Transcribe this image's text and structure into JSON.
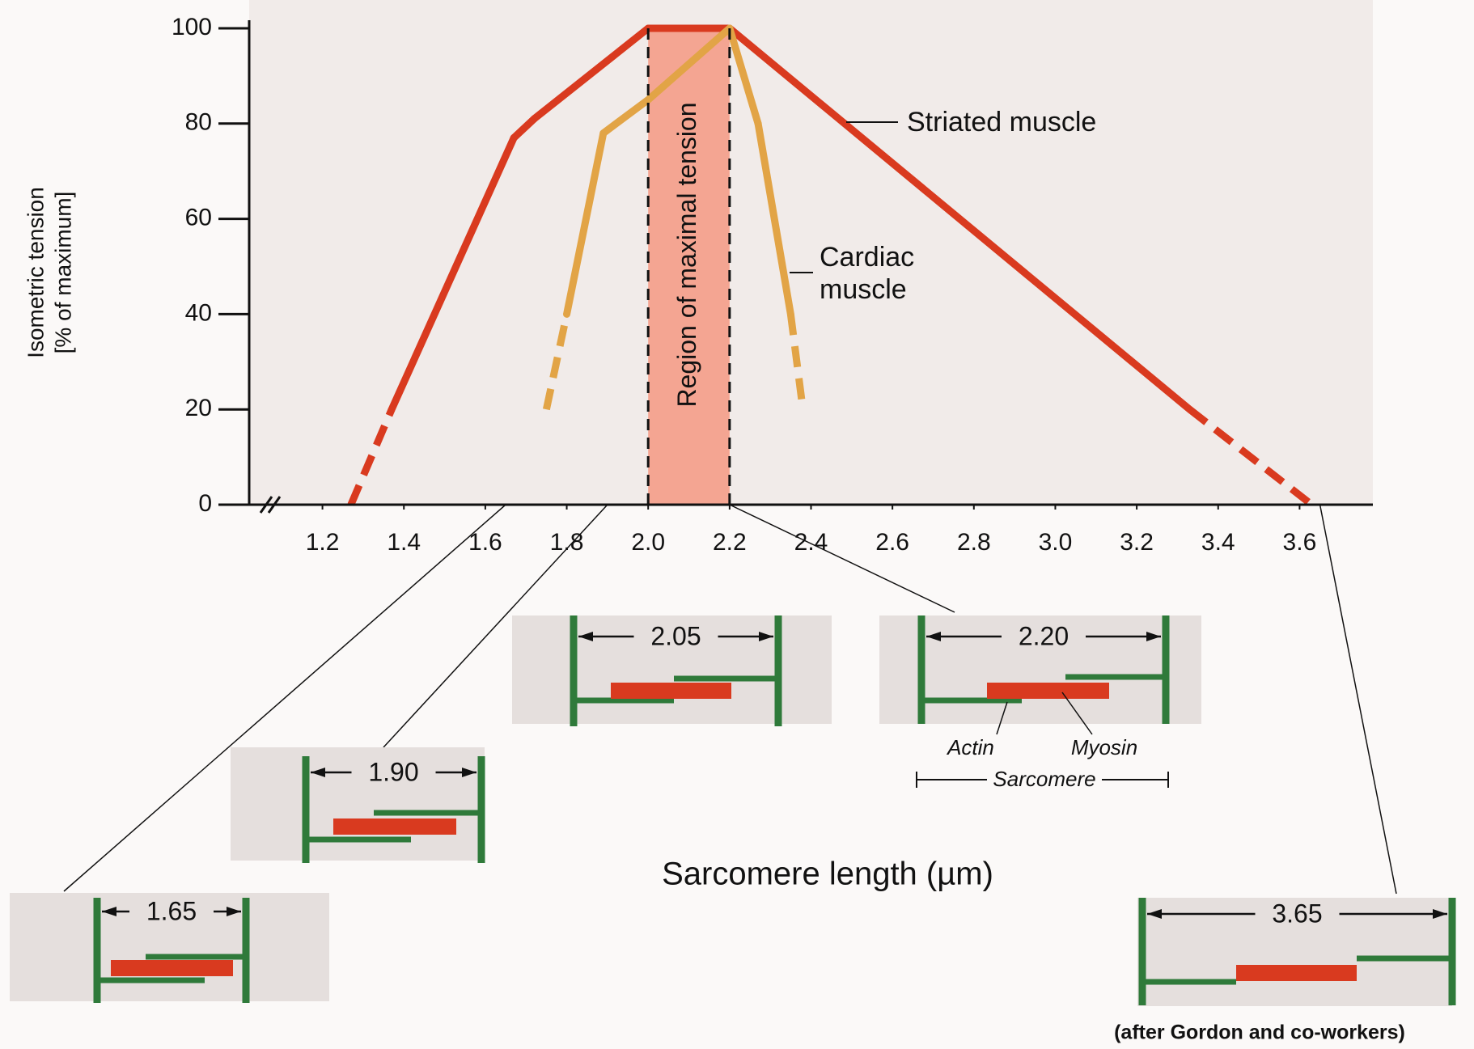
{
  "chart_data": {
    "type": "line",
    "ylabel": [
      "Isometric tension",
      "[% of maximum]"
    ],
    "xlabel": "Sarcomere length (µm)",
    "credit": "(after Gordon and co-workers)",
    "xlim": [
      1.02,
      3.78
    ],
    "ylim": [
      0,
      100
    ],
    "xticks": [
      {
        "value": 1.2,
        "label": "1.2"
      },
      {
        "value": 1.4,
        "label": "1.4"
      },
      {
        "value": 1.6,
        "label": "1.6"
      },
      {
        "value": 1.8,
        "label": "1.8"
      },
      {
        "value": 2.0,
        "label": "2.0"
      },
      {
        "value": 2.2,
        "label": "2.2"
      },
      {
        "value": 2.4,
        "label": "2.4"
      },
      {
        "value": 2.6,
        "label": "2.6"
      },
      {
        "value": 2.8,
        "label": "2.8"
      },
      {
        "value": 3.0,
        "label": "3.0"
      },
      {
        "value": 3.2,
        "label": "3.2"
      },
      {
        "value": 3.4,
        "label": "3.4"
      },
      {
        "value": 3.6,
        "label": "3.6"
      }
    ],
    "yticks": [
      0,
      20,
      40,
      60,
      80,
      100
    ],
    "region": {
      "x": [
        2.0,
        2.2
      ],
      "label": "Region of maximal tension",
      "color": "#f4a592"
    },
    "series": [
      {
        "name": "Striated muscle",
        "color": "#d93a1f",
        "x": [
          1.27,
          1.37,
          1.67,
          1.72,
          2.0,
          2.2,
          3.33,
          3.63
        ],
        "values": [
          0,
          20,
          77,
          81,
          100,
          100,
          20,
          0
        ],
        "dashed": [
          true,
          false,
          false,
          false,
          false,
          false,
          true
        ]
      },
      {
        "name": "Cardiac muscle",
        "color": "#e2a446",
        "x": [
          1.75,
          1.8,
          1.89,
          2.0,
          2.2,
          2.27,
          2.35,
          2.38
        ],
        "values": [
          20,
          40,
          78,
          85,
          100,
          80,
          40,
          20
        ],
        "dashed": [
          true,
          false,
          false,
          false,
          false,
          false,
          true
        ]
      }
    ],
    "diagrams": [
      {
        "value": 1.65,
        "label": "1.65"
      },
      {
        "value": 1.9,
        "label": "1.90"
      },
      {
        "value": 2.05,
        "label": "2.05"
      },
      {
        "value": 2.2,
        "label": "2.20"
      },
      {
        "value": 3.65,
        "label": "3.65"
      }
    ],
    "parts": {
      "actin": "Actin",
      "myosin": "Myosin",
      "sarcomere": "Sarcomere"
    }
  }
}
